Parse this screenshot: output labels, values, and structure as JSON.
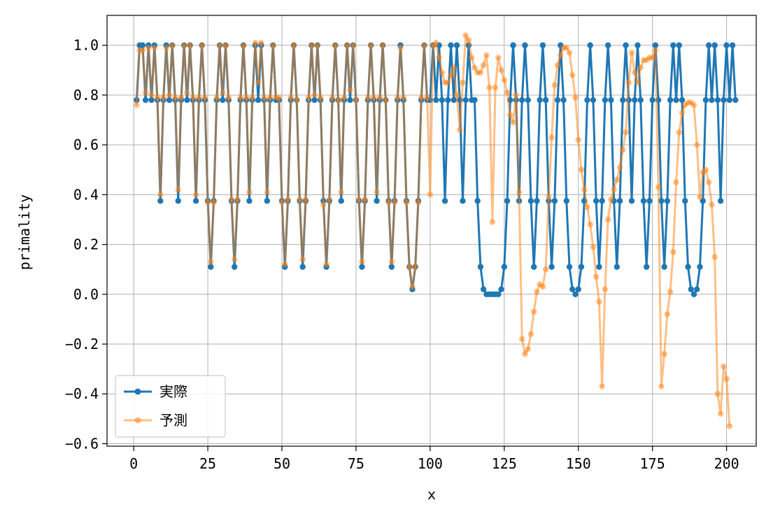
{
  "chart_data": {
    "type": "line",
    "xlabel": "x",
    "ylabel": "primality",
    "xlim": [
      -9,
      210
    ],
    "ylim": [
      -0.61,
      1.12
    ],
    "x_ticks": [
      0,
      25,
      50,
      75,
      100,
      125,
      150,
      175,
      200
    ],
    "x_tick_labels": [
      "0",
      "25",
      "50",
      "75",
      "100",
      "125",
      "150",
      "175",
      "200"
    ],
    "y_ticks": [
      -0.6,
      -0.4,
      -0.2,
      0.0,
      0.2,
      0.4,
      0.6,
      0.8,
      1.0
    ],
    "y_tick_labels": [
      "−0.6",
      "−0.4",
      "−0.2",
      "0.0",
      "0.2",
      "0.4",
      "0.6",
      "0.8",
      "1.0"
    ],
    "grid": true,
    "legend_position": "lower-left",
    "series": [
      {
        "name": "実際",
        "color": "#1f77b4",
        "x_start": 1,
        "values": [
          0.78,
          1.0,
          1.0,
          0.78,
          1.0,
          0.78,
          1.0,
          0.78,
          0.375,
          0.78,
          1.0,
          0.78,
          1.0,
          0.78,
          0.375,
          0.78,
          1.0,
          0.78,
          1.0,
          0.78,
          0.375,
          0.78,
          1.0,
          0.78,
          0.375,
          0.11,
          0.375,
          0.78,
          1.0,
          0.78,
          1.0,
          0.78,
          0.375,
          0.11,
          0.375,
          0.78,
          1.0,
          0.78,
          0.375,
          0.78,
          1.0,
          0.78,
          1.0,
          0.78,
          0.375,
          0.78,
          1.0,
          0.78,
          0.78,
          0.375,
          0.11,
          0.375,
          0.78,
          1.0,
          0.78,
          0.375,
          0.11,
          0.375,
          0.78,
          1.0,
          0.78,
          1.0,
          0.78,
          0.375,
          0.11,
          0.375,
          0.78,
          1.0,
          0.78,
          0.375,
          0.78,
          1.0,
          0.78,
          1.0,
          0.78,
          0.375,
          0.11,
          0.375,
          0.78,
          1.0,
          0.78,
          0.375,
          0.78,
          1.0,
          0.78,
          0.375,
          0.11,
          0.375,
          0.78,
          1.0,
          0.78,
          0.375,
          0.11,
          0.02,
          0.11,
          0.375,
          0.78,
          1.0,
          0.78,
          0.78,
          1.0,
          0.78,
          1.0,
          0.78,
          0.375,
          0.78,
          1.0,
          0.78,
          1.0,
          0.78,
          0.375,
          0.78,
          1.0,
          0.78,
          0.78,
          0.375,
          0.11,
          0.02,
          0.0,
          0.0,
          0.0,
          0.0,
          0.0,
          0.02,
          0.11,
          0.375,
          0.78,
          1.0,
          0.78,
          0.375,
          0.78,
          1.0,
          0.78,
          0.375,
          0.11,
          0.375,
          0.78,
          1.0,
          0.78,
          0.375,
          0.11,
          0.375,
          0.78,
          1.0,
          0.78,
          0.375,
          0.11,
          0.02,
          0.0,
          0.02,
          0.11,
          0.375,
          0.78,
          1.0,
          0.78,
          0.375,
          0.11,
          0.375,
          0.78,
          1.0,
          0.78,
          0.375,
          0.11,
          0.375,
          0.78,
          1.0,
          0.78,
          0.375,
          0.78,
          1.0,
          0.78,
          0.375,
          0.11,
          0.375,
          0.78,
          1.0,
          0.78,
          0.375,
          0.11,
          0.375,
          0.78,
          1.0,
          0.78,
          1.0,
          0.78,
          0.375,
          0.11,
          0.02,
          0.0,
          0.02,
          0.11,
          0.375,
          0.78,
          1.0,
          0.78,
          1.0,
          0.78,
          0.375,
          0.78,
          1.0,
          0.78,
          1.0,
          0.78
        ]
      },
      {
        "name": "予測",
        "color": "#ff7f0e",
        "x_start": 1,
        "values": [
          0.76,
          0.98,
          0.98,
          0.81,
          0.99,
          0.8,
          0.99,
          0.79,
          0.4,
          0.79,
          0.99,
          0.8,
          1.0,
          0.79,
          0.42,
          0.79,
          1.0,
          0.81,
          1.0,
          0.79,
          0.4,
          0.79,
          1.0,
          0.79,
          0.37,
          0.13,
          0.37,
          0.79,
          1.0,
          0.81,
          1.0,
          0.79,
          0.38,
          0.14,
          0.38,
          0.79,
          1.0,
          0.79,
          0.41,
          0.79,
          1.01,
          0.85,
          1.01,
          0.79,
          0.41,
          0.79,
          1.0,
          0.79,
          0.79,
          0.37,
          0.12,
          0.38,
          0.79,
          1.0,
          0.78,
          0.38,
          0.14,
          0.38,
          0.79,
          1.0,
          0.8,
          1.0,
          0.79,
          0.36,
          0.12,
          0.38,
          0.79,
          1.0,
          0.78,
          0.41,
          0.79,
          1.0,
          0.82,
          1.0,
          0.78,
          0.38,
          0.13,
          0.38,
          0.79,
          1.0,
          0.79,
          0.41,
          0.79,
          1.0,
          0.78,
          0.37,
          0.13,
          0.37,
          0.79,
          0.99,
          0.79,
          0.37,
          0.11,
          0.03,
          0.11,
          0.37,
          0.79,
          1.0,
          0.79,
          0.4,
          1.0,
          1.01,
          0.95,
          0.89,
          0.85,
          0.85,
          0.88,
          0.91,
          0.8,
          0.66,
          0.85,
          1.04,
          1.02,
          0.95,
          0.91,
          0.89,
          0.89,
          0.92,
          0.96,
          0.83,
          0.29,
          0.83,
          0.95,
          0.9,
          0.86,
          0.81,
          0.72,
          0.69,
          0.8,
          0.41,
          -0.18,
          -0.24,
          -0.22,
          -0.16,
          -0.07,
          0.01,
          0.04,
          0.03,
          0.1,
          0.39,
          0.63,
          0.84,
          0.92,
          0.96,
          0.99,
          0.99,
          0.97,
          0.88,
          0.79,
          0.62,
          0.5,
          0.42,
          0.35,
          0.28,
          0.19,
          0.07,
          -0.03,
          -0.37,
          0.02,
          0.3,
          0.38,
          0.42,
          0.46,
          0.51,
          0.58,
          0.65,
          0.85,
          0.97,
          0.89,
          0.85,
          0.91,
          0.94,
          0.94,
          0.95,
          0.95,
          0.98,
          0.43,
          -0.37,
          -0.24,
          -0.08,
          0.01,
          0.17,
          0.45,
          0.65,
          0.73,
          0.76,
          0.77,
          0.77,
          0.76,
          0.6,
          0.39,
          0.49,
          0.5,
          0.45,
          0.36,
          0.15,
          -0.4,
          -0.48,
          -0.29,
          -0.34,
          -0.53
        ]
      }
    ]
  }
}
